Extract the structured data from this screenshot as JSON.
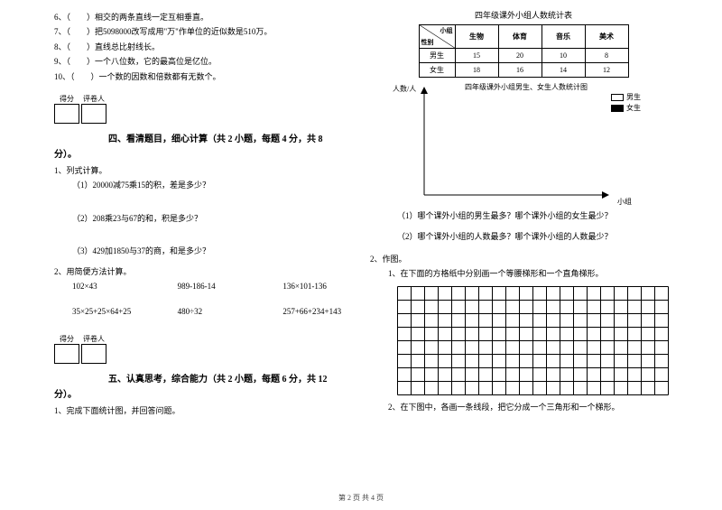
{
  "left": {
    "tf": [
      "6、（　　）相交的两条直线一定互相垂直。",
      "7、（　　）把5098000改写成用\"万\"作单位的近似数是510万。",
      "8、（　　）直线总比射线长。",
      "9、（　　）一个八位数，它的最高位是亿位。",
      "10、（　　）一个数的因数和倍数都有无数个。"
    ],
    "scoreLabels": {
      "a": "得分",
      "b": "评卷人"
    },
    "section4": "四、看清题目，细心计算（共 2 小题，每题 4 分，共 8",
    "fen": "分）。",
    "q1": "1、列式计算。",
    "q1a": "（1）20000减75乘15的积，差是多少？",
    "q1b": "（2）208乘23与67的和，积是多少？",
    "q1c": "（3）429加1850与37的商，和是多少？",
    "q2": "2、用简便方法计算。",
    "calc1": {
      "a": "102×43",
      "b": "989-186-14",
      "c": "136×101-136"
    },
    "calc2": {
      "a": "35×25+25×64+25",
      "b": "480÷32",
      "c": "257+66+234+143"
    },
    "section5": "五、认真思考，综合能力（共 2 小题，每题 6 分，共 12",
    "q5_1": "1、完成下面统计图，并回答问题。"
  },
  "right": {
    "tableTitle": "四年级课外小组人数统计表",
    "cornerTop": "小组",
    "cornerBottom": "性别",
    "cols": [
      "生物",
      "体育",
      "音乐",
      "美术"
    ],
    "rows": [
      {
        "label": "男生",
        "vals": [
          "15",
          "20",
          "10",
          "8"
        ]
      },
      {
        "label": "女生",
        "vals": [
          "18",
          "16",
          "14",
          "12"
        ]
      }
    ],
    "chartTitle": "四年级课外小组男生、女生人数统计图",
    "yLabel": "人数/人",
    "xLabel": "小组",
    "legend": {
      "a": "男生",
      "b": "女生"
    },
    "qa": "（1）哪个课外小组的男生最多？哪个课外小组的女生最少？",
    "qb": "（2）哪个课外小组的人数最多？哪个课外小组的人数最少？",
    "q2": "2、作图。",
    "q2a": "1、在下面的方格纸中分别画一个等腰梯形和一个直角梯形。",
    "q2b": "2、在下图中，各画一条线段，把它分成一个三角形和一个梯形。",
    "grid": {
      "cols": 20,
      "rows": 8,
      "cell": 15
    }
  },
  "footer": "第 2 页  共 4 页"
}
